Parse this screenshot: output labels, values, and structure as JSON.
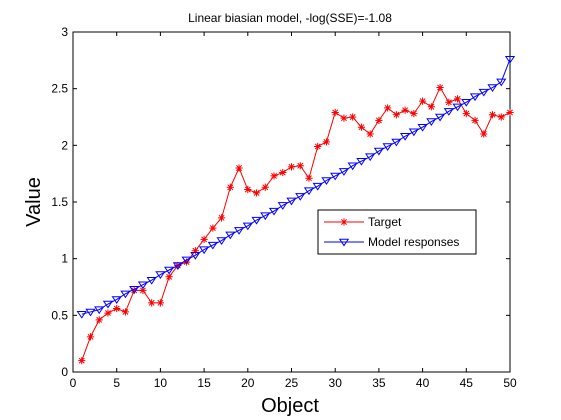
{
  "chart_data": {
    "type": "line",
    "title": "Linear biasian model, -log(SSE)=-1.08",
    "xlabel": "Object",
    "ylabel": "Value",
    "xlim": [
      0,
      50
    ],
    "ylim": [
      0,
      3
    ],
    "xticks": [
      "0",
      "5",
      "10",
      "15",
      "20",
      "25",
      "30",
      "35",
      "40",
      "45",
      "50"
    ],
    "yticks": [
      "0",
      "0.5",
      "1",
      "1.5",
      "2",
      "2.5",
      "3"
    ],
    "grid": false,
    "legend_position": "center-right",
    "x": [
      1,
      2,
      3,
      4,
      5,
      6,
      7,
      8,
      9,
      10,
      11,
      12,
      13,
      14,
      15,
      16,
      17,
      18,
      19,
      20,
      21,
      22,
      23,
      24,
      25,
      26,
      27,
      28,
      29,
      30,
      31,
      32,
      33,
      34,
      35,
      36,
      37,
      38,
      39,
      40,
      41,
      42,
      43,
      44,
      45,
      46,
      47,
      48,
      49,
      50
    ],
    "series": [
      {
        "name": "Target",
        "color": "#ff0000",
        "marker": "asterisk",
        "values": [
          0.1,
          0.31,
          0.46,
          0.52,
          0.56,
          0.53,
          0.72,
          0.72,
          0.61,
          0.61,
          0.84,
          0.94,
          0.97,
          1.07,
          1.17,
          1.27,
          1.36,
          1.63,
          1.8,
          1.61,
          1.58,
          1.63,
          1.73,
          1.76,
          1.81,
          1.82,
          1.71,
          1.99,
          2.03,
          2.29,
          2.24,
          2.25,
          2.16,
          2.1,
          2.22,
          2.33,
          2.27,
          2.31,
          2.28,
          2.39,
          2.34,
          2.51,
          2.38,
          2.41,
          2.28,
          2.22,
          2.1,
          2.27,
          2.25,
          2.29
        ]
      },
      {
        "name": "Model responses",
        "color": "#0000ff",
        "marker": "triangle-down",
        "values": [
          0.51,
          0.53,
          0.55,
          0.6,
          0.64,
          0.69,
          0.73,
          0.77,
          0.81,
          0.86,
          0.9,
          0.94,
          0.99,
          1.03,
          1.08,
          1.12,
          1.16,
          1.21,
          1.25,
          1.29,
          1.34,
          1.38,
          1.42,
          1.47,
          1.51,
          1.55,
          1.6,
          1.64,
          1.69,
          1.73,
          1.77,
          1.82,
          1.86,
          1.9,
          1.95,
          1.99,
          2.03,
          2.08,
          2.12,
          2.16,
          2.21,
          2.25,
          2.3,
          2.34,
          2.38,
          2.43,
          2.47,
          2.51,
          2.56,
          2.76
        ]
      }
    ]
  }
}
